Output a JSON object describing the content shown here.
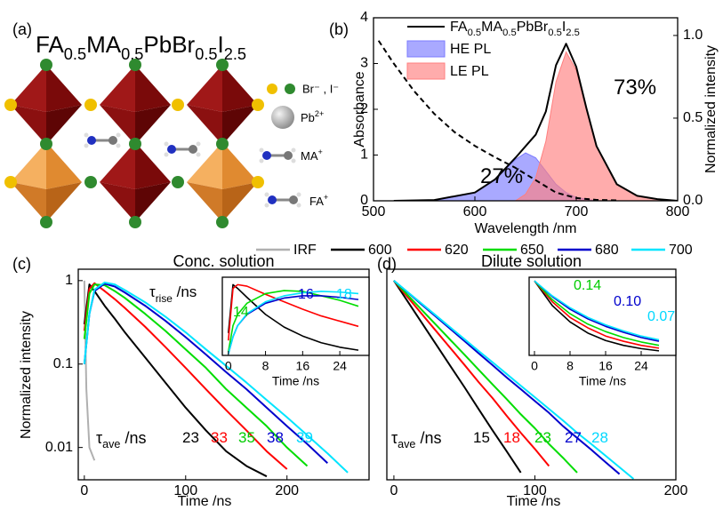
{
  "structure": {
    "panel_label": "(a)",
    "formula": "FA0.5MA0.5PbBr0.5I2.5",
    "legend": [
      "Br⁻ , I⁻",
      "Pb2+",
      "MA+",
      "FA+"
    ]
  },
  "chart_data": [
    {
      "panel_label": "(b)",
      "type": "line",
      "xlabel": "Wavelength /nm",
      "ylabel": "Absorbance",
      "y2label": "Normalized intensity",
      "xlim": [
        500,
        800
      ],
      "xticks": [
        500,
        600,
        700,
        800
      ],
      "ylim": [
        0,
        4
      ],
      "yticks": [
        0,
        1,
        2,
        3,
        4
      ],
      "y2lim": [
        0,
        1.107
      ],
      "y2ticks": [
        {
          "value": 0,
          "label": "0.0"
        },
        {
          "value": 0.5,
          "label": "0.5"
        },
        {
          "value": 1,
          "label": "1.0"
        }
      ],
      "legend": "upper left",
      "annotations": [
        {
          "text": "27%",
          "color": "#000000"
        },
        {
          "text": "73%",
          "color": "#000000"
        }
      ],
      "series": [
        {
          "name": "HE PL",
          "color": "#7b7bff",
          "fill": true,
          "axis": "y2",
          "x": [
            560,
            600,
            620,
            640,
            650,
            660,
            670,
            680,
            690,
            700,
            720
          ],
          "values": [
            0,
            0.05,
            0.13,
            0.25,
            0.29,
            0.26,
            0.18,
            0.1,
            0.05,
            0.02,
            0
          ]
        },
        {
          "name": "LE PL",
          "color": "#ff7f7f",
          "fill": true,
          "axis": "y2",
          "x": [
            640,
            650,
            660,
            670,
            680,
            690,
            700,
            710,
            720,
            740,
            760,
            780,
            800
          ],
          "values": [
            0,
            0.04,
            0.14,
            0.36,
            0.72,
            0.9,
            0.79,
            0.55,
            0.33,
            0.1,
            0.03,
            0.01,
            0
          ]
        },
        {
          "name": "FA0.5MA0.5PbBr0.5I2.5",
          "color": "#000000",
          "axis": "y2",
          "x": [
            520,
            560,
            600,
            620,
            640,
            650,
            660,
            670,
            680,
            690,
            700,
            710,
            720,
            740,
            760,
            780,
            800
          ],
          "values": [
            0,
            0.005,
            0.05,
            0.13,
            0.26,
            0.33,
            0.4,
            0.54,
            0.82,
            0.95,
            0.81,
            0.56,
            0.33,
            0.1,
            0.03,
            0.01,
            0
          ]
        },
        {
          "color": "#000000",
          "dash": true,
          "x": [
            505,
            520,
            540,
            560,
            580,
            600,
            620,
            640,
            660,
            680,
            700,
            720,
            740
          ],
          "values": [
            3.5,
            3.0,
            2.4,
            1.9,
            1.5,
            1.2,
            0.95,
            0.72,
            0.45,
            0.18,
            0.06,
            0.02,
            0.01
          ]
        }
      ]
    },
    {
      "panel_label": "(c)",
      "type": "line",
      "title": "Conc. solution",
      "xlabel": "Time /ns",
      "ylabel": "Normalized intensity",
      "yscale": "log",
      "xlim": [
        -6,
        281
      ],
      "xticks": [
        0,
        100,
        200
      ],
      "ylim": [
        0.0041,
        1.37
      ],
      "yticks": [
        0.01,
        0.1,
        1
      ],
      "annotations": [
        {
          "text": "τave /ns",
          "color": "#000000"
        },
        {
          "text": "23",
          "color": "#000000"
        },
        {
          "text": "33",
          "color": "#ff0000"
        },
        {
          "text": "35",
          "color": "#00cc00"
        },
        {
          "text": "38",
          "color": "#0000cc"
        },
        {
          "text": "39",
          "color": "#00d8ff"
        }
      ],
      "series": [
        {
          "name": "IRF",
          "color": "#b0b0b0",
          "x": [
            0,
            2,
            5,
            10
          ],
          "values": [
            1,
            0.05,
            0.01,
            0.007
          ]
        },
        {
          "name": "600",
          "color": "#000000",
          "x": [
            0,
            5,
            10,
            20,
            30,
            40,
            60,
            80,
            100,
            120,
            140,
            160,
            180
          ],
          "values": [
            0.3,
            0.9,
            0.75,
            0.5,
            0.35,
            0.24,
            0.12,
            0.06,
            0.03,
            0.016,
            0.009,
            0.006,
            0.0045
          ]
        },
        {
          "name": "620",
          "color": "#ff0000",
          "x": [
            0,
            5,
            10,
            20,
            30,
            40,
            60,
            80,
            100,
            120,
            140,
            160,
            180,
            200
          ],
          "values": [
            0.25,
            0.8,
            0.93,
            0.75,
            0.6,
            0.47,
            0.28,
            0.16,
            0.09,
            0.05,
            0.028,
            0.016,
            0.009,
            0.0055
          ]
        },
        {
          "name": "650",
          "color": "#00dd00",
          "x": [
            0,
            5,
            10,
            20,
            30,
            40,
            60,
            80,
            100,
            120,
            140,
            160,
            180,
            200,
            220
          ],
          "values": [
            0.2,
            0.7,
            0.9,
            0.88,
            0.75,
            0.62,
            0.4,
            0.25,
            0.15,
            0.09,
            0.05,
            0.03,
            0.018,
            0.01,
            0.006
          ]
        },
        {
          "name": "680",
          "color": "#0000cc",
          "x": [
            0,
            5,
            10,
            20,
            30,
            40,
            60,
            80,
            100,
            120,
            140,
            160,
            180,
            200,
            220,
            240
          ],
          "values": [
            0.1,
            0.4,
            0.75,
            0.92,
            0.85,
            0.72,
            0.5,
            0.33,
            0.21,
            0.13,
            0.08,
            0.05,
            0.03,
            0.018,
            0.011,
            0.0065
          ]
        },
        {
          "name": "700",
          "color": "#00e5ff",
          "x": [
            0,
            5,
            10,
            20,
            30,
            40,
            60,
            80,
            100,
            120,
            140,
            160,
            180,
            200,
            220,
            240,
            260
          ],
          "values": [
            0.1,
            0.4,
            0.78,
            0.95,
            0.9,
            0.77,
            0.55,
            0.37,
            0.24,
            0.15,
            0.095,
            0.06,
            0.037,
            0.023,
            0.014,
            0.0085,
            0.005
          ]
        }
      ]
    },
    {
      "type": "line",
      "xlabel": "Time /ns",
      "xlim": [
        -1.3,
        30.3
      ],
      "xticks": [
        0,
        8,
        16,
        24
      ],
      "ylim": [
        0,
        1.05
      ],
      "annotations": [
        {
          "text": "τrise /ns",
          "color": "#000000"
        },
        {
          "text": "14",
          "color": "#00cc00"
        },
        {
          "text": "16",
          "color": "#0000cc"
        },
        {
          "text": "18",
          "color": "#00d8ff"
        }
      ],
      "x": [
        0,
        1,
        2,
        4,
        8,
        12,
        16,
        20,
        24,
        28
      ],
      "series": [
        {
          "color": "#000000",
          "values": [
            0.3,
            0.95,
            0.9,
            0.78,
            0.55,
            0.38,
            0.26,
            0.17,
            0.11,
            0.07
          ]
        },
        {
          "color": "#ff0000",
          "values": [
            0.2,
            0.9,
            0.95,
            0.93,
            0.82,
            0.72,
            0.62,
            0.53,
            0.46,
            0.39
          ]
        },
        {
          "color": "#00dd00",
          "values": [
            0.05,
            0.4,
            0.55,
            0.7,
            0.83,
            0.87,
            0.86,
            0.8,
            0.74,
            0.66
          ]
        },
        {
          "color": "#0000cc",
          "values": [
            0.02,
            0.25,
            0.4,
            0.55,
            0.7,
            0.77,
            0.8,
            0.8,
            0.78,
            0.75
          ]
        },
        {
          "color": "#00e5ff",
          "values": [
            0.02,
            0.25,
            0.4,
            0.56,
            0.72,
            0.8,
            0.84,
            0.86,
            0.85,
            0.83
          ]
        }
      ]
    },
    {
      "panel_label": "(d)",
      "type": "line",
      "title": "Dilute solution",
      "xlabel": "Time /ns",
      "yscale": "log",
      "xlim": [
        -5,
        200
      ],
      "xticks": [
        0,
        100,
        200
      ],
      "ylim": [
        0.0041,
        1.37
      ],
      "annotations": [
        {
          "text": "τave /ns",
          "color": "#000000"
        },
        {
          "text": "15",
          "color": "#000000"
        },
        {
          "text": "18",
          "color": "#ff0000"
        },
        {
          "text": "23",
          "color": "#00cc00"
        },
        {
          "text": "27",
          "color": "#0000cc"
        },
        {
          "text": "28",
          "color": "#00d8ff"
        }
      ],
      "x": [
        0,
        10,
        20,
        30,
        40,
        50,
        60,
        70,
        80,
        90,
        100,
        110,
        120,
        130,
        140,
        150,
        160,
        170
      ],
      "series": [
        {
          "color": "#000000",
          "values": [
            1,
            0.555,
            0.308,
            0.171,
            0.095,
            0.053,
            0.029,
            0.016,
            0.009,
            0.005,
            null,
            null,
            null,
            null,
            null,
            null,
            null,
            null
          ]
        },
        {
          "color": "#ff0000",
          "values": [
            1,
            0.628,
            0.395,
            0.248,
            0.156,
            0.098,
            0.061,
            0.039,
            0.024,
            0.015,
            0.0096,
            0.006,
            null,
            null,
            null,
            null,
            null,
            null
          ]
        },
        {
          "color": "#00dd00",
          "values": [
            1,
            0.665,
            0.442,
            0.294,
            0.195,
            0.13,
            0.086,
            0.057,
            0.038,
            0.025,
            0.017,
            0.011,
            0.0075,
            0.005,
            null,
            null,
            null,
            null
          ]
        },
        {
          "color": "#0000cc",
          "values": [
            1,
            0.717,
            0.513,
            0.368,
            0.264,
            0.189,
            0.135,
            0.097,
            0.069,
            0.05,
            0.036,
            0.026,
            0.018,
            0.013,
            0.0094,
            0.0067,
            0.0048,
            null
          ]
        },
        {
          "color": "#00e5ff",
          "values": [
            1,
            0.724,
            0.525,
            0.38,
            0.275,
            0.199,
            0.144,
            0.105,
            0.076,
            0.055,
            0.04,
            0.029,
            0.021,
            0.015,
            0.011,
            0.008,
            0.0058,
            0.0042
          ]
        }
      ]
    },
    {
      "type": "line",
      "xlabel": "Time /ns",
      "xlim": [
        -1.2,
        31.8
      ],
      "xticks": [
        0,
        8,
        16,
        24
      ],
      "ylim": [
        0,
        1.05
      ],
      "annotations": [
        {
          "text": "0.14",
          "color": "#00cc00"
        },
        {
          "text": "0.10",
          "color": "#0000cc"
        },
        {
          "text": "0.07",
          "color": "#00d8ff"
        }
      ],
      "x": [
        0,
        4,
        8,
        12,
        16,
        20,
        24,
        28
      ],
      "series": [
        {
          "color": "#000000",
          "values": [
            1,
            0.67,
            0.45,
            0.3,
            0.2,
            0.135,
            0.091,
            0.061
          ]
        },
        {
          "color": "#ff0000",
          "values": [
            1,
            0.72,
            0.51,
            0.37,
            0.26,
            0.19,
            0.135,
            0.097
          ]
        },
        {
          "color": "#00dd00",
          "values": [
            1,
            0.75,
            0.56,
            0.42,
            0.32,
            0.24,
            0.18,
            0.135
          ]
        },
        {
          "color": "#0000cc",
          "values": [
            1,
            0.79,
            0.62,
            0.49,
            0.39,
            0.31,
            0.24,
            0.19
          ]
        },
        {
          "color": "#00e5ff",
          "values": [
            1,
            0.8,
            0.64,
            0.51,
            0.41,
            0.33,
            0.26,
            0.21
          ]
        }
      ]
    }
  ]
}
